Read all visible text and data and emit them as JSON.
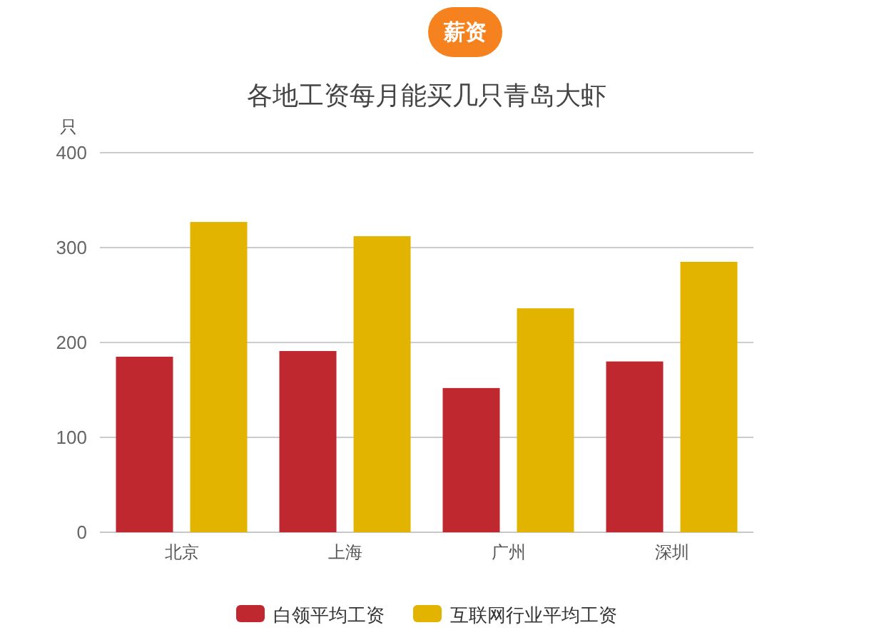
{
  "chart_data": {
    "type": "bar",
    "title": "各地工资每月能买几只青岛大虾",
    "ylabel": "只",
    "annotations": [
      "薪资"
    ],
    "categories": [
      "北京",
      "上海",
      "广州",
      "深圳"
    ],
    "series": [
      {
        "name": "白领平均工资",
        "color": "#c0282f",
        "values": [
          185,
          191,
          152,
          180
        ]
      },
      {
        "name": "互联网行业平均工资",
        "color": "#e2b400",
        "values": [
          327,
          312,
          236,
          285
        ]
      }
    ],
    "ylim": [
      0,
      400
    ],
    "yticks": [
      0,
      100,
      200,
      300,
      400
    ],
    "grid": "y",
    "legend": "bottom"
  }
}
